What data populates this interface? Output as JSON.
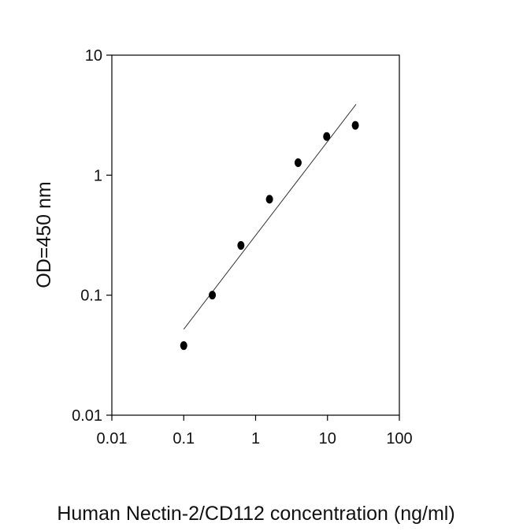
{
  "chart_data": {
    "type": "scatter",
    "title": "",
    "xlabel": "Human Nectin-2/CD112 concentration (ng/ml)",
    "ylabel": "OD=450 nm",
    "x_scale": "log",
    "y_scale": "log",
    "xlim": [
      0.01,
      100
    ],
    "ylim": [
      0.01,
      10
    ],
    "x_ticks": [
      "0.01",
      "0.1",
      "1",
      "10",
      "100"
    ],
    "y_ticks": [
      "0.01",
      "0.1",
      "1",
      "10"
    ],
    "grid": false,
    "series": [
      {
        "points": [
          {
            "x": 0.1,
            "y": 0.038
          },
          {
            "x": 0.25,
            "y": 0.1
          },
          {
            "x": 0.625,
            "y": 0.26
          },
          {
            "x": 1.56,
            "y": 0.63
          },
          {
            "x": 3.9,
            "y": 1.27
          },
          {
            "x": 9.75,
            "y": 2.1
          },
          {
            "x": 24.4,
            "y": 2.6
          }
        ]
      }
    ],
    "trendline": {
      "x_start": 0.1,
      "y_start": 0.052,
      "x_end": 25,
      "y_end": 3.9
    },
    "colors": {
      "marker": "#000000",
      "line": "#333333",
      "axis": "#000000"
    }
  }
}
